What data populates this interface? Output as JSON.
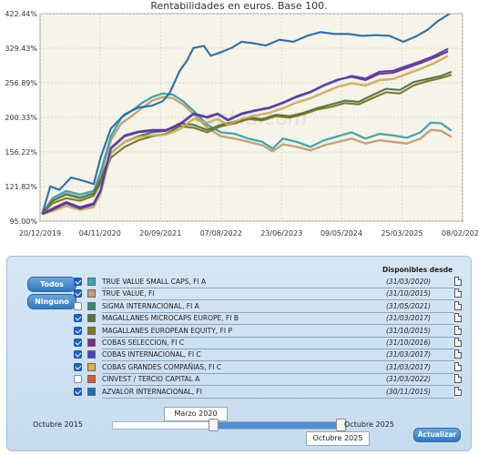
{
  "chart_data": {
    "type": "line",
    "title": "Rentabilidades en euros. Base 100.",
    "y_ticks": [
      "95.00%",
      "121.82%",
      "156.22%",
      "200.33%",
      "256.89%",
      "329.43%",
      "422.44%"
    ],
    "y_values": [
      95,
      121.82,
      156.22,
      200.33,
      256.89,
      329.43,
      422.44
    ],
    "y_scale": "log",
    "x_ticks": [
      "20/12/2019",
      "04/11/2020",
      "20/09/2021",
      "07/08/2022",
      "23/06/2023",
      "09/05/2024",
      "25/03/2025",
      "08/02/2026"
    ],
    "x_tick_years": [
      2019.97,
      2020.84,
      2021.72,
      2022.6,
      2023.48,
      2024.35,
      2025.23,
      2026.11
    ],
    "grid": true,
    "series": [
      {
        "name": "AZVALOR INTERNACIONAL, FI",
        "color": "#1f6fb5",
        "points": [
          [
            2020.0,
            100
          ],
          [
            2020.12,
            122
          ],
          [
            2020.25,
            119
          ],
          [
            2020.42,
            130
          ],
          [
            2020.6,
            127
          ],
          [
            2020.75,
            124
          ],
          [
            2020.85,
            150
          ],
          [
            2021.0,
            185
          ],
          [
            2021.2,
            205
          ],
          [
            2021.4,
            215
          ],
          [
            2021.6,
            218
          ],
          [
            2021.75,
            225
          ],
          [
            2021.85,
            238
          ],
          [
            2022.0,
            280
          ],
          [
            2022.1,
            300
          ],
          [
            2022.2,
            330
          ],
          [
            2022.35,
            335
          ],
          [
            2022.45,
            312
          ],
          [
            2022.6,
            320
          ],
          [
            2022.75,
            330
          ],
          [
            2022.9,
            345
          ],
          [
            2023.05,
            342
          ],
          [
            2023.25,
            336
          ],
          [
            2023.45,
            350
          ],
          [
            2023.65,
            345
          ],
          [
            2023.85,
            360
          ],
          [
            2024.05,
            370
          ],
          [
            2024.25,
            365
          ],
          [
            2024.45,
            365
          ],
          [
            2024.65,
            360
          ],
          [
            2024.85,
            362
          ],
          [
            2025.05,
            360
          ],
          [
            2025.25,
            345
          ],
          [
            2025.45,
            360
          ],
          [
            2025.6,
            376
          ],
          [
            2025.75,
            400
          ],
          [
            2025.92,
            422
          ]
        ]
      },
      {
        "name": "COBAS INTERNACIONAL, FI C",
        "color": "#4b3fc2",
        "points": [
          [
            2020.0,
            100
          ],
          [
            2020.15,
            103
          ],
          [
            2020.35,
            108
          ],
          [
            2020.55,
            104
          ],
          [
            2020.75,
            107
          ],
          [
            2020.85,
            118
          ],
          [
            2021.0,
            160
          ],
          [
            2021.2,
            175
          ],
          [
            2021.4,
            180
          ],
          [
            2021.6,
            182
          ],
          [
            2021.8,
            182
          ],
          [
            2022.0,
            190
          ],
          [
            2022.2,
            205
          ],
          [
            2022.4,
            200
          ],
          [
            2022.55,
            205
          ],
          [
            2022.7,
            196
          ],
          [
            2022.9,
            205
          ],
          [
            2023.1,
            210
          ],
          [
            2023.3,
            214
          ],
          [
            2023.5,
            222
          ],
          [
            2023.7,
            232
          ],
          [
            2023.9,
            240
          ],
          [
            2024.1,
            252
          ],
          [
            2024.3,
            262
          ],
          [
            2024.5,
            270
          ],
          [
            2024.7,
            265
          ],
          [
            2024.9,
            278
          ],
          [
            2025.1,
            280
          ],
          [
            2025.3,
            290
          ],
          [
            2025.5,
            300
          ],
          [
            2025.7,
            312
          ],
          [
            2025.9,
            328
          ]
        ]
      },
      {
        "name": "COBAS SELECCION, FI C",
        "color": "#7a2a8a",
        "points": [
          [
            2020.0,
            100
          ],
          [
            2020.15,
            104
          ],
          [
            2020.35,
            109
          ],
          [
            2020.55,
            105
          ],
          [
            2020.75,
            108
          ],
          [
            2020.85,
            119
          ],
          [
            2021.0,
            161
          ],
          [
            2021.2,
            176
          ],
          [
            2021.4,
            181
          ],
          [
            2021.6,
            183
          ],
          [
            2021.8,
            183
          ],
          [
            2022.0,
            191
          ],
          [
            2022.2,
            206
          ],
          [
            2022.4,
            201
          ],
          [
            2022.55,
            206
          ],
          [
            2022.7,
            197
          ],
          [
            2022.9,
            206
          ],
          [
            2023.1,
            211
          ],
          [
            2023.3,
            215
          ],
          [
            2023.5,
            223
          ],
          [
            2023.7,
            233
          ],
          [
            2023.9,
            241
          ],
          [
            2024.1,
            253
          ],
          [
            2024.3,
            263
          ],
          [
            2024.5,
            268
          ],
          [
            2024.7,
            262
          ],
          [
            2024.9,
            274
          ],
          [
            2025.1,
            276
          ],
          [
            2025.3,
            286
          ],
          [
            2025.5,
            296
          ],
          [
            2025.7,
            308
          ],
          [
            2025.9,
            322
          ]
        ]
      },
      {
        "name": "COBAS GRANDES COMPAÑIAS, FI C",
        "color": "#d8b24a",
        "points": [
          [
            2020.0,
            100
          ],
          [
            2020.15,
            102
          ],
          [
            2020.35,
            106
          ],
          [
            2020.55,
            103
          ],
          [
            2020.75,
            105
          ],
          [
            2020.85,
            116
          ],
          [
            2021.0,
            155
          ],
          [
            2021.2,
            168
          ],
          [
            2021.4,
            174
          ],
          [
            2021.6,
            176
          ],
          [
            2021.8,
            177
          ],
          [
            2022.0,
            184
          ],
          [
            2022.2,
            198
          ],
          [
            2022.4,
            193
          ],
          [
            2022.55,
            198
          ],
          [
            2022.7,
            190
          ],
          [
            2022.9,
            198
          ],
          [
            2023.1,
            203
          ],
          [
            2023.3,
            207
          ],
          [
            2023.5,
            214
          ],
          [
            2023.7,
            223
          ],
          [
            2023.9,
            230
          ],
          [
            2024.1,
            240
          ],
          [
            2024.3,
            250
          ],
          [
            2024.5,
            256
          ],
          [
            2024.7,
            252
          ],
          [
            2024.9,
            262
          ],
          [
            2025.1,
            264
          ],
          [
            2025.3,
            274
          ],
          [
            2025.5,
            284
          ],
          [
            2025.7,
            296
          ],
          [
            2025.9,
            312
          ]
        ]
      },
      {
        "name": "MAGALLANES EUROPEAN EQUITY, FI P",
        "color": "#7d7a1e",
        "points": [
          [
            2020.0,
            100
          ],
          [
            2020.15,
            108
          ],
          [
            2020.35,
            112
          ],
          [
            2020.55,
            110
          ],
          [
            2020.75,
            114
          ],
          [
            2020.85,
            125
          ],
          [
            2021.0,
            150
          ],
          [
            2021.2,
            162
          ],
          [
            2021.4,
            170
          ],
          [
            2021.6,
            175
          ],
          [
            2021.8,
            178
          ],
          [
            2022.0,
            188
          ],
          [
            2022.2,
            186
          ],
          [
            2022.4,
            180
          ],
          [
            2022.6,
            188
          ],
          [
            2022.8,
            192
          ],
          [
            2023.0,
            198
          ],
          [
            2023.2,
            196
          ],
          [
            2023.4,
            202
          ],
          [
            2023.6,
            200
          ],
          [
            2023.8,
            205
          ],
          [
            2024.0,
            212
          ],
          [
            2024.2,
            216
          ],
          [
            2024.4,
            222
          ],
          [
            2024.6,
            220
          ],
          [
            2024.8,
            230
          ],
          [
            2025.0,
            240
          ],
          [
            2025.2,
            238
          ],
          [
            2025.4,
            252
          ],
          [
            2025.6,
            260
          ],
          [
            2025.8,
            266
          ],
          [
            2025.95,
            272
          ]
        ]
      },
      {
        "name": "MAGALLANES MICROCAPS EUROPE, FI B",
        "color": "#4f7a3a",
        "points": [
          [
            2020.0,
            100
          ],
          [
            2020.15,
            110
          ],
          [
            2020.35,
            115
          ],
          [
            2020.55,
            112
          ],
          [
            2020.75,
            116
          ],
          [
            2020.85,
            128
          ],
          [
            2021.0,
            155
          ],
          [
            2021.2,
            168
          ],
          [
            2021.4,
            175
          ],
          [
            2021.6,
            180
          ],
          [
            2021.8,
            182
          ],
          [
            2022.0,
            192
          ],
          [
            2022.2,
            190
          ],
          [
            2022.4,
            183
          ],
          [
            2022.6,
            190
          ],
          [
            2022.8,
            194
          ],
          [
            2023.0,
            200
          ],
          [
            2023.2,
            198
          ],
          [
            2023.4,
            204
          ],
          [
            2023.6,
            202
          ],
          [
            2023.8,
            207
          ],
          [
            2024.0,
            214
          ],
          [
            2024.2,
            220
          ],
          [
            2024.4,
            226
          ],
          [
            2024.6,
            224
          ],
          [
            2024.8,
            235
          ],
          [
            2025.0,
            246
          ],
          [
            2025.2,
            244
          ],
          [
            2025.4,
            258
          ],
          [
            2025.6,
            264
          ],
          [
            2025.8,
            270
          ],
          [
            2025.95,
            278
          ]
        ]
      },
      {
        "name": "TRUE VALUE SMALL CAPS, FI A",
        "color": "#2fa8b8",
        "points": [
          [
            2020.0,
            100
          ],
          [
            2020.15,
            112
          ],
          [
            2020.35,
            118
          ],
          [
            2020.55,
            115
          ],
          [
            2020.75,
            118
          ],
          [
            2020.85,
            135
          ],
          [
            2021.0,
            175
          ],
          [
            2021.15,
            200
          ],
          [
            2021.3,
            210
          ],
          [
            2021.45,
            222
          ],
          [
            2021.6,
            232
          ],
          [
            2021.75,
            238
          ],
          [
            2021.9,
            236
          ],
          [
            2022.05,
            225
          ],
          [
            2022.2,
            210
          ],
          [
            2022.4,
            190
          ],
          [
            2022.6,
            180
          ],
          [
            2022.8,
            178
          ],
          [
            2023.0,
            172
          ],
          [
            2023.2,
            168
          ],
          [
            2023.35,
            160
          ],
          [
            2023.5,
            172
          ],
          [
            2023.7,
            168
          ],
          [
            2023.9,
            162
          ],
          [
            2024.1,
            170
          ],
          [
            2024.3,
            175
          ],
          [
            2024.5,
            180
          ],
          [
            2024.7,
            172
          ],
          [
            2024.9,
            178
          ],
          [
            2025.1,
            176
          ],
          [
            2025.3,
            173
          ],
          [
            2025.5,
            180
          ],
          [
            2025.65,
            193
          ],
          [
            2025.8,
            192
          ],
          [
            2025.95,
            182
          ]
        ]
      },
      {
        "name": "TRUE VALUE, FI",
        "color": "#c9a070",
        "points": [
          [
            2020.0,
            100
          ],
          [
            2020.15,
            110
          ],
          [
            2020.35,
            116
          ],
          [
            2020.55,
            113
          ],
          [
            2020.75,
            116
          ],
          [
            2020.85,
            132
          ],
          [
            2021.0,
            170
          ],
          [
            2021.15,
            192
          ],
          [
            2021.3,
            202
          ],
          [
            2021.45,
            214
          ],
          [
            2021.6,
            226
          ],
          [
            2021.75,
            232
          ],
          [
            2021.9,
            230
          ],
          [
            2022.05,
            220
          ],
          [
            2022.2,
            205
          ],
          [
            2022.4,
            186
          ],
          [
            2022.6,
            175
          ],
          [
            2022.8,
            172
          ],
          [
            2023.0,
            168
          ],
          [
            2023.2,
            164
          ],
          [
            2023.35,
            157
          ],
          [
            2023.5,
            165
          ],
          [
            2023.7,
            162
          ],
          [
            2023.9,
            158
          ],
          [
            2024.1,
            164
          ],
          [
            2024.3,
            168
          ],
          [
            2024.5,
            172
          ],
          [
            2024.7,
            166
          ],
          [
            2024.9,
            170
          ],
          [
            2025.1,
            168
          ],
          [
            2025.3,
            166
          ],
          [
            2025.5,
            172
          ],
          [
            2025.65,
            183
          ],
          [
            2025.8,
            182
          ],
          [
            2025.95,
            174
          ]
        ]
      }
    ]
  },
  "panel": {
    "todos_label": "Todos",
    "ninguno_label": "Ninguno",
    "disponibles_header": "Disponibles desde",
    "funds": [
      {
        "name": "TRUE VALUE SMALL CAPS, FI A",
        "date": "(31/03/2020)",
        "checked": true,
        "color": "#2fa8b8"
      },
      {
        "name": "TRUE VALUE, FI",
        "date": "(31/10/2015)",
        "checked": true,
        "color": "#c9a070"
      },
      {
        "name": "SIGMA INTERNACIONAL, FI A",
        "date": "(31/05/2021)",
        "checked": false,
        "color": "#3a8a6a"
      },
      {
        "name": "MAGALLANES MICROCAPS EUROPE, FI B",
        "date": "(31/03/2017)",
        "checked": true,
        "color": "#4f7a3a"
      },
      {
        "name": "MAGALLANES EUROPEAN EQUITY, FI P",
        "date": "(31/10/2015)",
        "checked": true,
        "color": "#7d7a1e"
      },
      {
        "name": "COBAS SELECCION, FI C",
        "date": "(31/10/2016)",
        "checked": true,
        "color": "#7a2a8a"
      },
      {
        "name": "COBAS INTERNACIONAL, FI C",
        "date": "(31/03/2017)",
        "checked": true,
        "color": "#4b3fc2"
      },
      {
        "name": "COBAS GRANDES COMPAÑIAS, FI C",
        "date": "(31/03/2017)",
        "checked": true,
        "color": "#d8b24a"
      },
      {
        "name": "CINVEST / TERCIO CAPITAL A",
        "date": "(31/03/2022)",
        "checked": false,
        "color": "#e05a2a"
      },
      {
        "name": "AZVALOR INTERNACIONAL, FI",
        "date": "(30/11/2015)",
        "checked": true,
        "color": "#1f6fb5"
      }
    ],
    "slider": {
      "start_label": "Marzo 2020",
      "end_label": "Octubre 2025",
      "min_label": "Octubre 2015",
      "max_label": "Octubre 2025",
      "start_fraction": 0.43,
      "end_fraction": 1.0
    },
    "update_label": "Actualizar"
  }
}
